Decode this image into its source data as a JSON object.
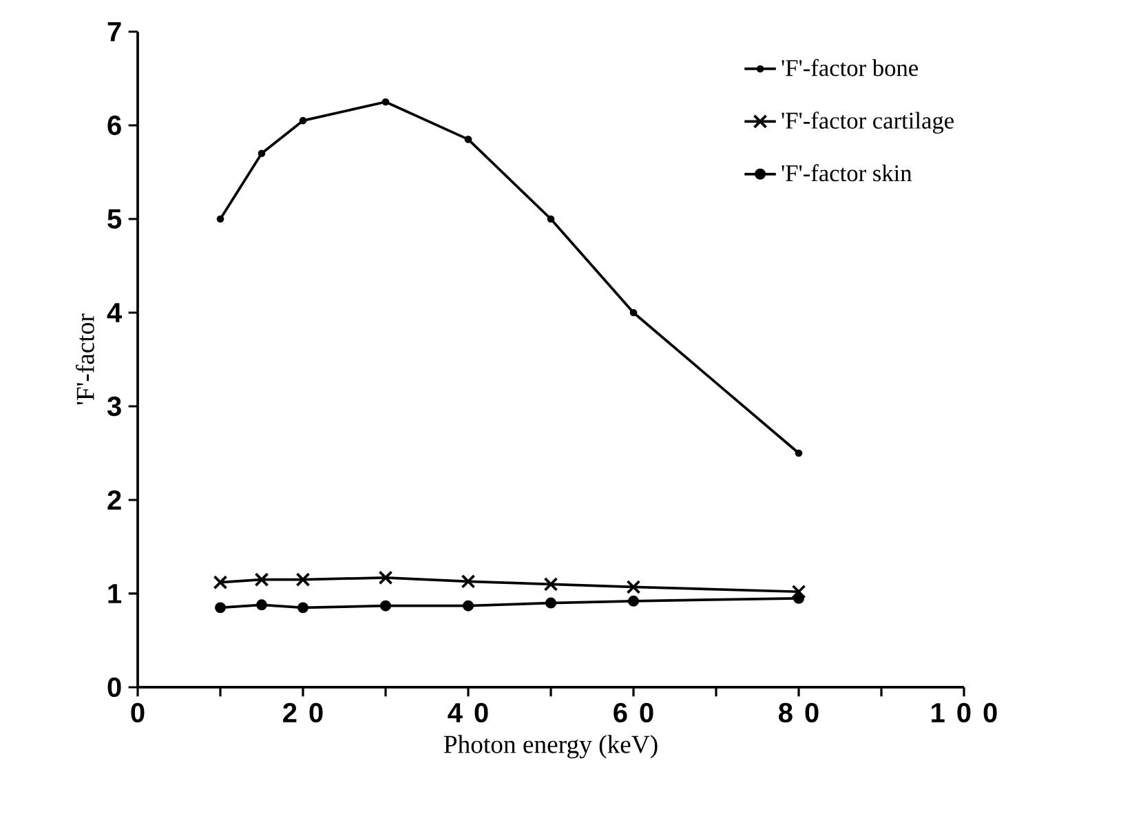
{
  "chart_data": {
    "type": "line",
    "xlabel": "Photon energy (keV)",
    "ylabel": "'F'-factor",
    "x": [
      10,
      15,
      20,
      30,
      40,
      50,
      60,
      80
    ],
    "series": [
      {
        "name": "'F'-factor bone",
        "color": "#000000",
        "marker": "dot",
        "values": [
          5.0,
          5.7,
          6.05,
          6.25,
          5.85,
          5.0,
          4.0,
          2.5
        ]
      },
      {
        "name": "'F'-factor cartilage",
        "color": "#000000",
        "marker": "cross",
        "values": [
          1.12,
          1.15,
          1.15,
          1.17,
          1.13,
          1.1,
          1.07,
          1.02
        ]
      },
      {
        "name": "'F'-factor skin",
        "color": "#000000",
        "marker": "circle",
        "values": [
          0.85,
          0.88,
          0.85,
          0.87,
          0.87,
          0.9,
          0.92,
          0.95
        ]
      }
    ],
    "xlim": [
      0,
      100
    ],
    "ylim": [
      0,
      7
    ],
    "xticks": [
      0,
      {
        "value": 10,
        "label": null
      },
      20,
      {
        "value": 30,
        "label": null
      },
      40,
      {
        "value": 50,
        "label": null
      },
      60,
      {
        "value": 70,
        "label": null
      },
      80,
      {
        "value": 90,
        "label": null
      },
      100
    ],
    "yticks": [
      0,
      1,
      2,
      3,
      4,
      5,
      6,
      7
    ],
    "grid": false,
    "legend": "top right",
    "line_style": "solid"
  }
}
